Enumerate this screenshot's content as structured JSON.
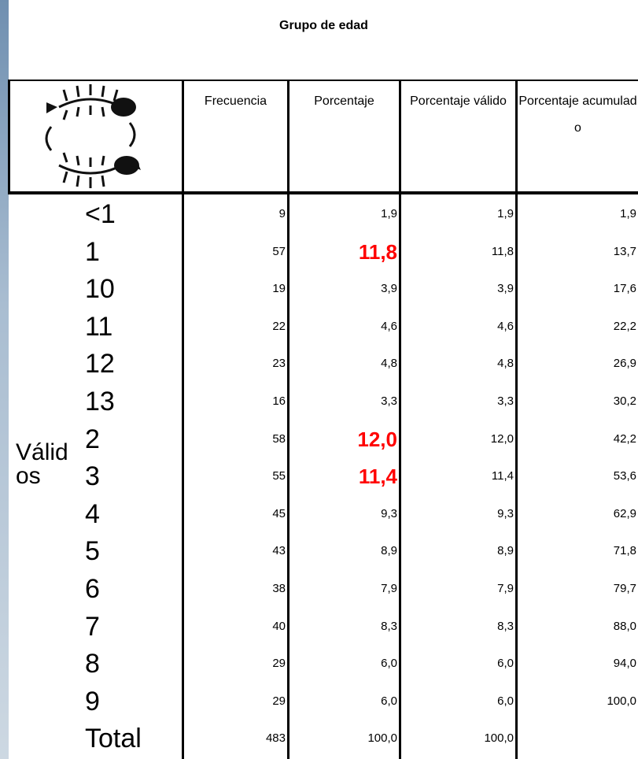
{
  "title": "Grupo de edad",
  "table": {
    "headers": [
      "Frecuencia",
      "Porcentaje",
      "Porcentaje válido",
      "Porcentaje acumulado"
    ],
    "group_label": "Válidos",
    "emphasis_color": "#ff0000",
    "rows": [
      {
        "label": "<1",
        "cells": [
          "9",
          "1,9",
          "1,9",
          "1,9"
        ]
      },
      {
        "label": "1",
        "cells": [
          "57",
          "11,8",
          "11,8",
          "13,7"
        ],
        "emphasized": true
      },
      {
        "label": "10",
        "cells": [
          "19",
          "3,9",
          "3,9",
          "17,6"
        ]
      },
      {
        "label": "11",
        "cells": [
          "22",
          "4,6",
          "4,6",
          "22,2"
        ]
      },
      {
        "label": "12",
        "cells": [
          "23",
          "4,8",
          "4,8",
          "26,9"
        ]
      },
      {
        "label": "13",
        "cells": [
          "16",
          "3,3",
          "3,3",
          "30,2"
        ]
      },
      {
        "label": "2",
        "cells": [
          "58",
          "12,0",
          "12,0",
          "42,2"
        ],
        "emphasized": true
      },
      {
        "label": "3",
        "cells": [
          "55",
          "11,4",
          "11,4",
          "53,6"
        ],
        "emphasized": true
      },
      {
        "label": "4",
        "cells": [
          "45",
          "9,3",
          "9,3",
          "62,9"
        ]
      },
      {
        "label": "5",
        "cells": [
          "43",
          "8,9",
          "8,9",
          "71,8"
        ]
      },
      {
        "label": "6",
        "cells": [
          "38",
          "7,9",
          "7,9",
          "79,7"
        ]
      },
      {
        "label": "7",
        "cells": [
          "40",
          "8,3",
          "8,3",
          "88,0"
        ]
      },
      {
        "label": "8",
        "cells": [
          "29",
          "6,0",
          "6,0",
          "94,0"
        ]
      },
      {
        "label": "9",
        "cells": [
          "29",
          "6,0",
          "6,0",
          "100,0"
        ]
      },
      {
        "label": "Total",
        "cells": [
          "483",
          "100,0",
          "100,0"
        ]
      }
    ]
  }
}
